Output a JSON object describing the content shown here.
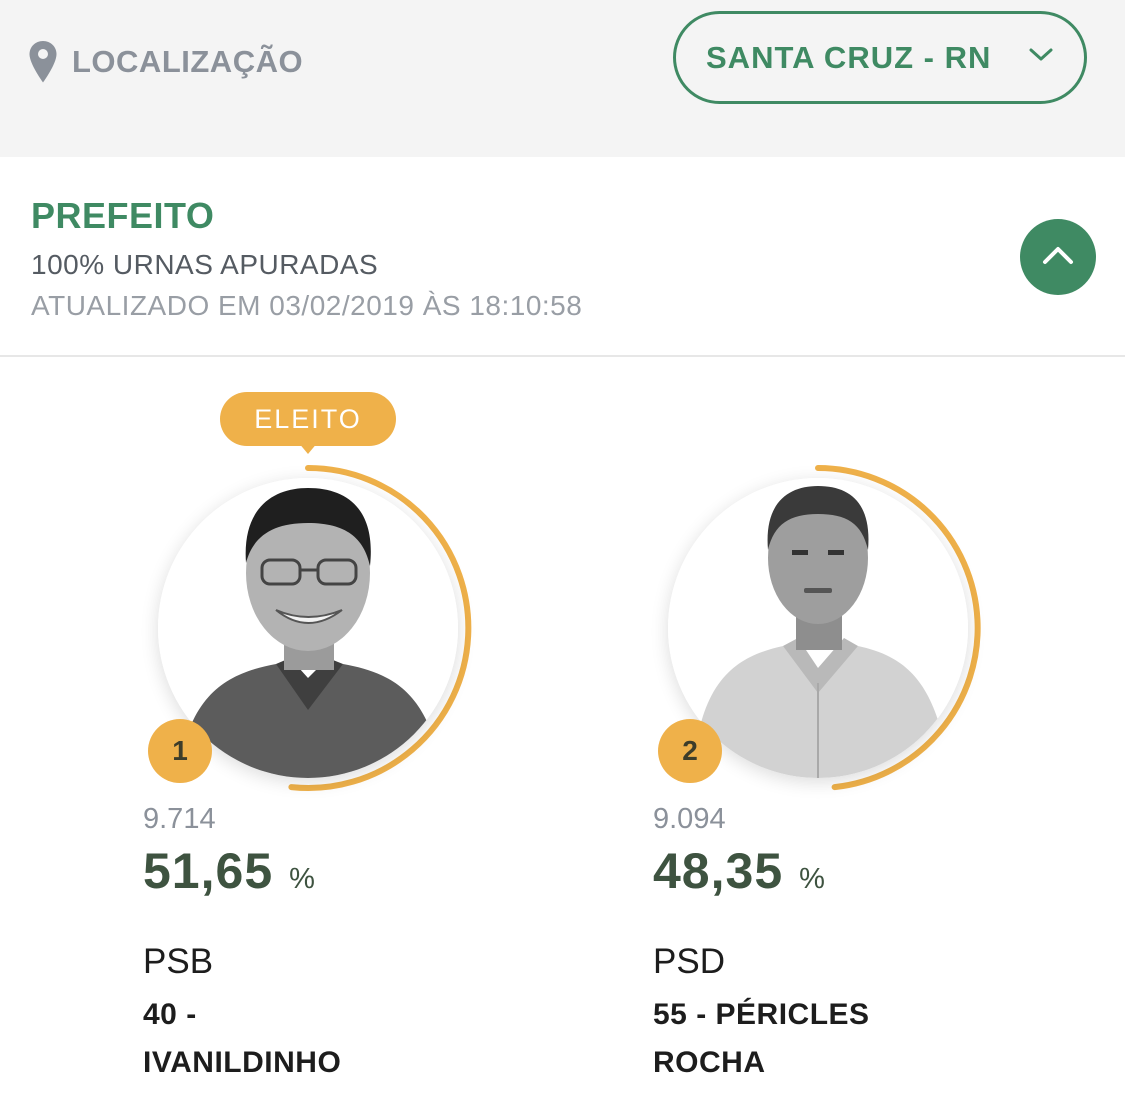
{
  "location": {
    "label": "LOCALIZAÇÃO",
    "icon": "map-pin-icon",
    "selected_city": "SANTA CRUZ - RN"
  },
  "section": {
    "title": "PREFEITO",
    "subtitle": "100% URNAS APURADAS",
    "updated": "ATUALIZADO EM 03/02/2019 ÀS 18:10:58",
    "collapse_icon": "chevron-up-icon"
  },
  "colors": {
    "brand_green": "#3f8a63",
    "accent_gold": "#efb14a",
    "number_green": "#3e5340"
  },
  "candidates": [
    {
      "badge": "ELEITO",
      "rank": "1",
      "votes": "9.714",
      "percent": "51,65",
      "percent_sign": "%",
      "vote_share": 0.5165,
      "party": "PSB",
      "name": "40 - IVANILDINHO"
    },
    {
      "rank": "2",
      "votes": "9.094",
      "percent": "48,35",
      "percent_sign": "%",
      "vote_share": 0.4835,
      "party": "PSD",
      "name": "55 - PÉRICLES ROCHA"
    }
  ]
}
